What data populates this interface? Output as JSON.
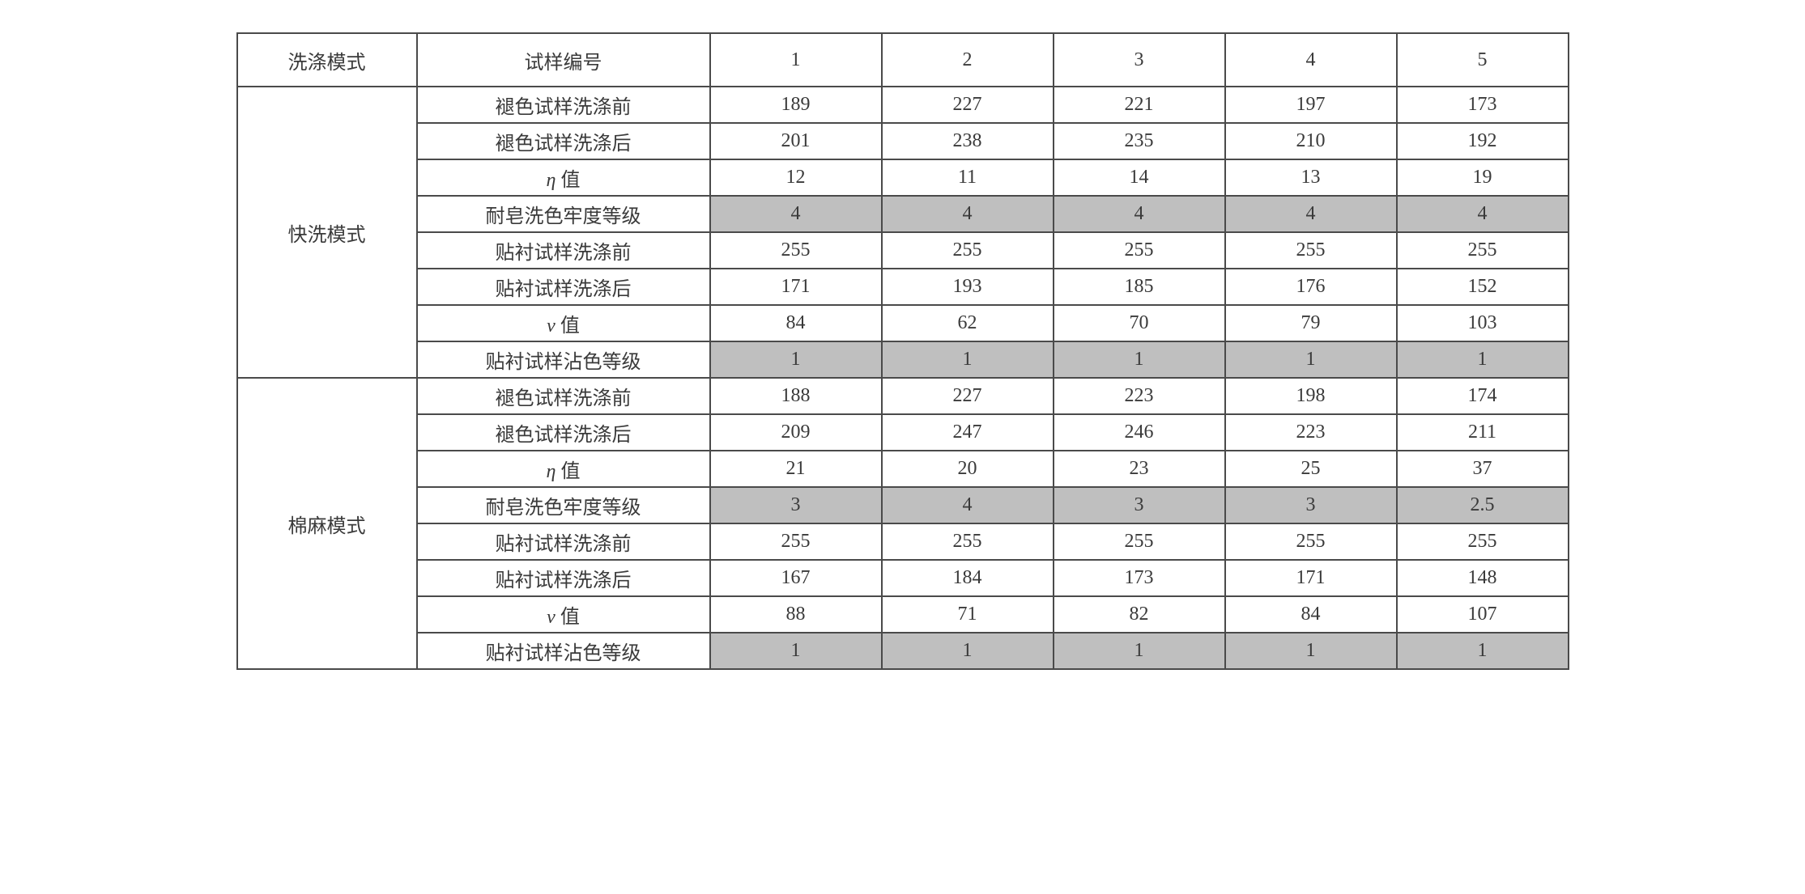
{
  "colors": {
    "border": "#4a4a4a",
    "text": "#3a3a3a",
    "shaded_bg": "#bfbfbf",
    "page_bg": "#ffffff"
  },
  "typography": {
    "font_family": "SimSun",
    "font_size_pt": 18
  },
  "columns": {
    "mode": "洗涤模式",
    "label": "试样编号",
    "n1": "1",
    "n2": "2",
    "n3": "3",
    "n4": "4",
    "n5": "5"
  },
  "groups": [
    {
      "mode": "快洗模式",
      "rows": [
        {
          "label": "褪色试样洗涤前",
          "v": [
            "189",
            "227",
            "221",
            "197",
            "173"
          ],
          "shaded": false
        },
        {
          "label": "褪色试样洗涤后",
          "v": [
            "201",
            "238",
            "235",
            "210",
            "192"
          ],
          "shaded": false
        },
        {
          "label": "η 值",
          "v": [
            "12",
            "11",
            "14",
            "13",
            "19"
          ],
          "shaded": false,
          "italic_sym": true
        },
        {
          "label": "耐皂洗色牢度等级",
          "v": [
            "4",
            "4",
            "4",
            "4",
            "4"
          ],
          "shaded": true
        },
        {
          "label": "贴衬试样洗涤前",
          "v": [
            "255",
            "255",
            "255",
            "255",
            "255"
          ],
          "shaded": false
        },
        {
          "label": "贴衬试样洗涤后",
          "v": [
            "171",
            "193",
            "185",
            "176",
            "152"
          ],
          "shaded": false
        },
        {
          "label": "v 值",
          "v": [
            "84",
            "62",
            "70",
            "79",
            "103"
          ],
          "shaded": false,
          "italic_sym": true
        },
        {
          "label": "贴衬试样沾色等级",
          "v": [
            "1",
            "1",
            "1",
            "1",
            "1"
          ],
          "shaded": true
        }
      ]
    },
    {
      "mode": "棉麻模式",
      "rows": [
        {
          "label": "褪色试样洗涤前",
          "v": [
            "188",
            "227",
            "223",
            "198",
            "174"
          ],
          "shaded": false
        },
        {
          "label": "褪色试样洗涤后",
          "v": [
            "209",
            "247",
            "246",
            "223",
            "211"
          ],
          "shaded": false
        },
        {
          "label": "η 值",
          "v": [
            "21",
            "20",
            "23",
            "25",
            "37"
          ],
          "shaded": false,
          "italic_sym": true
        },
        {
          "label": "耐皂洗色牢度等级",
          "v": [
            "3",
            "4",
            "3",
            "3",
            "2.5"
          ],
          "shaded": true
        },
        {
          "label": "贴衬试样洗涤前",
          "v": [
            "255",
            "255",
            "255",
            "255",
            "255"
          ],
          "shaded": false
        },
        {
          "label": "贴衬试样洗涤后",
          "v": [
            "167",
            "184",
            "173",
            "171",
            "148"
          ],
          "shaded": false
        },
        {
          "label": "v 值",
          "v": [
            "88",
            "71",
            "82",
            "84",
            "107"
          ],
          "shaded": false,
          "italic_sym": true
        },
        {
          "label": "贴衬试样沾色等级",
          "v": [
            "1",
            "1",
            "1",
            "1",
            "1"
          ],
          "shaded": true
        }
      ]
    }
  ]
}
